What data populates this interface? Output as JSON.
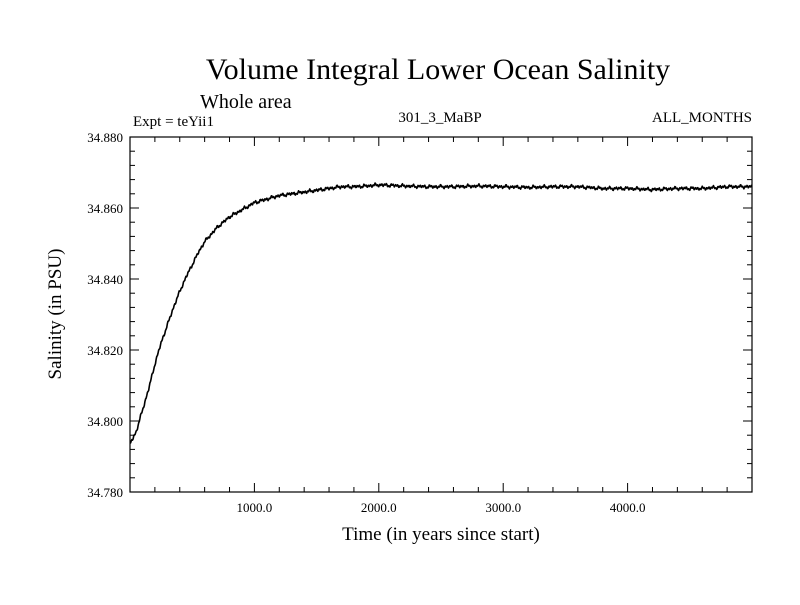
{
  "chart_data": {
    "type": "line",
    "title": "Volume Integral Lower Ocean Salinity",
    "subtitle": "Whole area",
    "experiment_label": "Expt = teYii1",
    "run_label": "301_3_MaBP",
    "period_label": "ALL_MONTHS",
    "xlabel": "Time (in years since start)",
    "ylabel": "Salinity (in PSU)",
    "xlim": [
      0,
      5000
    ],
    "ylim": [
      34.78,
      34.88
    ],
    "x_ticks": [
      1000,
      2000,
      3000,
      4000
    ],
    "x_tick_labels": [
      "1000.0",
      "2000.0",
      "3000.0",
      "4000.0"
    ],
    "y_ticks": [
      34.78,
      34.8,
      34.82,
      34.84,
      34.86,
      34.88
    ],
    "y_tick_labels": [
      "34.780",
      "34.800",
      "34.820",
      "34.840",
      "34.860",
      "34.880"
    ],
    "line_color": "#000000",
    "series": [
      {
        "name": "Salinity",
        "x": [
          0,
          50,
          100,
          150,
          200,
          250,
          300,
          350,
          400,
          450,
          500,
          550,
          600,
          650,
          700,
          750,
          800,
          850,
          900,
          950,
          1000,
          1100,
          1200,
          1300,
          1400,
          1500,
          1600,
          1700,
          1800,
          1900,
          2000,
          2200,
          2400,
          2600,
          2800,
          3000,
          3200,
          3400,
          3600,
          3800,
          4000,
          4200,
          4400,
          4600,
          4800,
          5000
        ],
        "y": [
          34.7935,
          34.797,
          34.803,
          34.809,
          34.816,
          34.822,
          34.827,
          34.832,
          34.8365,
          34.8405,
          34.844,
          34.8475,
          34.8505,
          34.8525,
          34.8545,
          34.856,
          34.8575,
          34.8585,
          34.8595,
          34.8605,
          34.8615,
          34.8625,
          34.8635,
          34.864,
          34.8645,
          34.865,
          34.8655,
          34.866,
          34.866,
          34.8662,
          34.8665,
          34.8662,
          34.866,
          34.866,
          34.8662,
          34.866,
          34.8658,
          34.866,
          34.866,
          34.8655,
          34.8655,
          34.8652,
          34.8655,
          34.8655,
          34.866,
          34.866
        ]
      }
    ]
  }
}
